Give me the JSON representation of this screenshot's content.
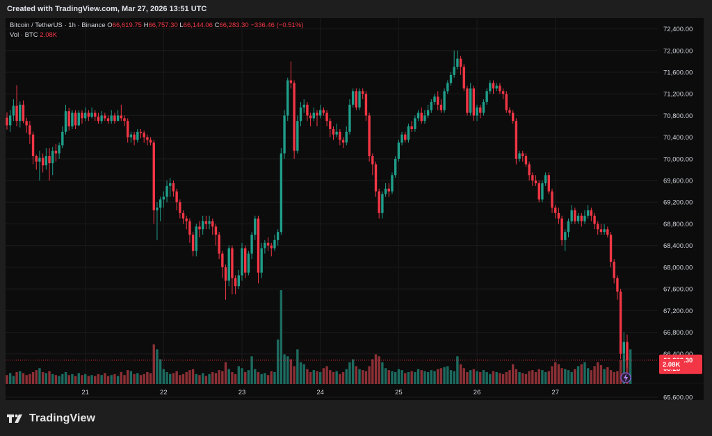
{
  "header": {
    "created": "Created with TradingView.com, Mar 27, 2026 13:51 UTC"
  },
  "legend": {
    "symbol": "Bitcoin / TetherUS · 1h · Binance",
    "o_label": "O",
    "o_value": "66,619.75",
    "h_label": "H",
    "h_value": "66,757.30",
    "l_label": "L",
    "l_value": "66,144.06",
    "c_label": "C",
    "c_value": "66,283.30",
    "change": "−336.46 (−0.51%)",
    "vol_label": "Vol · BTC",
    "vol_value": "2.08K"
  },
  "badges": {
    "price": "66,283.30",
    "countdown": "08:28",
    "volume": "2.08K"
  },
  "branding": {
    "name": "TradingView"
  },
  "colors": {
    "up": "#1f9e8a",
    "down": "#f23645",
    "vol_up": "#1c6b60",
    "vol_down": "#8c3036",
    "grid": "#1b1b1b",
    "background": "#0c0c0c"
  },
  "chart_data": {
    "type": "candlestick",
    "y_ticks": [
      "72,400.00",
      "72,000.00",
      "71,600.00",
      "71,200.00",
      "70,800.00",
      "70,400.00",
      "70,000.00",
      "69,600.00",
      "69,200.00",
      "68,800.00",
      "68,400.00",
      "68,000.00",
      "67,600.00",
      "67,200.00",
      "66,800.00",
      "66,400.00",
      "65,600.00"
    ],
    "x_ticks": [
      "21",
      "22",
      "23",
      "24",
      "25",
      "26",
      "27"
    ],
    "ylim": [
      65550,
      72600
    ],
    "last_price": 66283.3,
    "candles": [
      [
        70760,
        70620,
        70860,
        70540
      ],
      [
        70620,
        70800,
        70900,
        70500
      ],
      [
        70800,
        70980,
        71100,
        70700
      ],
      [
        70980,
        70700,
        71360,
        70600
      ],
      [
        70700,
        71000,
        71060,
        70580
      ],
      [
        71000,
        70700,
        71080,
        70660
      ],
      [
        70700,
        70620,
        70760,
        70480
      ],
      [
        70620,
        70450,
        70700,
        70280
      ],
      [
        70450,
        70050,
        70500,
        69900
      ],
      [
        70050,
        69950,
        70080,
        69800
      ],
      [
        69950,
        70020,
        70150,
        69600
      ],
      [
        70020,
        69880,
        70100,
        69750
      ],
      [
        69880,
        70050,
        70200,
        69800
      ],
      [
        70050,
        69920,
        70200,
        69600
      ],
      [
        69920,
        70150,
        70220,
        69700
      ],
      [
        70150,
        70100,
        70280,
        69950
      ],
      [
        70100,
        70250,
        70300,
        70000
      ],
      [
        70250,
        70500,
        70600,
        70200
      ],
      [
        70500,
        70880,
        71000,
        70450
      ],
      [
        70880,
        70600,
        70940,
        70520
      ],
      [
        70600,
        70850,
        70900,
        70550
      ],
      [
        70850,
        70620,
        70900,
        70550
      ],
      [
        70620,
        70850,
        70900,
        70600
      ],
      [
        70850,
        70750,
        70900,
        70650
      ],
      [
        70750,
        70850,
        70950,
        70700
      ],
      [
        70850,
        70780,
        70900,
        70700
      ],
      [
        70780,
        70850,
        70950,
        70750
      ],
      [
        70850,
        70780,
        70900,
        70700
      ],
      [
        70780,
        70700,
        70850,
        70650
      ],
      [
        70700,
        70800,
        70880,
        70650
      ],
      [
        70800,
        70750,
        70850,
        70700
      ],
      [
        70750,
        70700,
        70800,
        70650
      ],
      [
        70700,
        70800,
        70900,
        70650
      ],
      [
        70800,
        70700,
        70850,
        70650
      ],
      [
        70700,
        70800,
        70900,
        70700
      ],
      [
        70800,
        70750,
        71000,
        70700
      ],
      [
        70750,
        70700,
        70800,
        70600
      ],
      [
        70700,
        70400,
        70750,
        70300
      ],
      [
        70400,
        70450,
        70500,
        70300
      ],
      [
        70450,
        70350,
        70500,
        70250
      ],
      [
        70350,
        70500,
        70550,
        70300
      ],
      [
        70500,
        70480,
        70550,
        70380
      ],
      [
        70480,
        70400,
        70520,
        70300
      ],
      [
        70400,
        70350,
        70450,
        70250
      ],
      [
        70350,
        70300,
        70400,
        70250
      ],
      [
        70300,
        69050,
        70350,
        68800
      ],
      [
        69050,
        69100,
        69200,
        68500
      ],
      [
        69100,
        69250,
        69300,
        68850
      ],
      [
        69250,
        69300,
        69400,
        69100
      ],
      [
        69300,
        69500,
        69600,
        69200
      ],
      [
        69500,
        69550,
        69650,
        69300
      ],
      [
        69550,
        69400,
        69600,
        69300
      ],
      [
        69400,
        69200,
        69450,
        69050
      ],
      [
        69200,
        69000,
        69250,
        68900
      ],
      [
        69000,
        68900,
        69050,
        68800
      ],
      [
        68900,
        68850,
        68950,
        68700
      ],
      [
        68850,
        68600,
        68900,
        68450
      ],
      [
        68600,
        68300,
        68650,
        68200
      ],
      [
        68300,
        68750,
        68800,
        68200
      ],
      [
        68750,
        68700,
        68850,
        68550
      ],
      [
        68700,
        68850,
        68950,
        68600
      ],
      [
        68850,
        68800,
        68950,
        68700
      ],
      [
        68800,
        68850,
        68950,
        68700
      ],
      [
        68850,
        68750,
        68900,
        68600
      ],
      [
        68750,
        68600,
        68800,
        68400
      ],
      [
        68600,
        68250,
        68650,
        68150
      ],
      [
        68250,
        68000,
        68300,
        67800
      ],
      [
        68000,
        67750,
        68050,
        67400
      ],
      [
        67750,
        68350,
        68400,
        67650
      ],
      [
        68350,
        67800,
        68400,
        67500
      ],
      [
        67800,
        67650,
        67850,
        67500
      ],
      [
        67650,
        67850,
        67950,
        67600
      ],
      [
        67850,
        68350,
        68450,
        67750
      ],
      [
        68350,
        67900,
        68400,
        67800
      ],
      [
        67900,
        68250,
        68300,
        67850
      ],
      [
        68250,
        68600,
        68650,
        68150
      ],
      [
        68600,
        68900,
        68950,
        68500
      ],
      [
        68900,
        67900,
        68950,
        67700
      ],
      [
        67900,
        68350,
        68450,
        67800
      ],
      [
        68350,
        68450,
        68500,
        68250
      ],
      [
        68450,
        68400,
        68550,
        68300
      ],
      [
        68400,
        68350,
        68450,
        68200
      ],
      [
        68350,
        68500,
        68600,
        68300
      ],
      [
        68500,
        68650,
        68700,
        68400
      ],
      [
        68650,
        70100,
        70200,
        68600
      ],
      [
        70100,
        70800,
        70900,
        70000
      ],
      [
        70800,
        71450,
        71500,
        70700
      ],
      [
        71450,
        71400,
        71800,
        71300
      ],
      [
        71400,
        70150,
        71450,
        70000
      ],
      [
        70150,
        70700,
        70800,
        70100
      ],
      [
        70700,
        70950,
        71050,
        70600
      ],
      [
        70950,
        71000,
        71100,
        70850
      ],
      [
        71000,
        70800,
        71050,
        70700
      ],
      [
        70800,
        70750,
        70850,
        70600
      ],
      [
        70750,
        70850,
        70950,
        70700
      ],
      [
        70850,
        70800,
        70900,
        70600
      ],
      [
        70800,
        70900,
        71000,
        70750
      ],
      [
        70900,
        70850,
        70950,
        70800
      ],
      [
        70850,
        70700,
        70900,
        70600
      ],
      [
        70700,
        70550,
        70750,
        70400
      ],
      [
        70550,
        70450,
        70600,
        70350
      ],
      [
        70450,
        70500,
        70650,
        70400
      ],
      [
        70500,
        70350,
        70550,
        70250
      ],
      [
        70350,
        70300,
        70400,
        70200
      ],
      [
        70300,
        70500,
        70600,
        70250
      ],
      [
        70500,
        71000,
        71100,
        70450
      ],
      [
        71000,
        71250,
        71300,
        70950
      ],
      [
        71250,
        70950,
        71300,
        70900
      ],
      [
        70950,
        71250,
        71300,
        70900
      ],
      [
        71250,
        71200,
        71300,
        71100
      ],
      [
        71200,
        70800,
        71250,
        70700
      ],
      [
        70800,
        70050,
        70850,
        69950
      ],
      [
        70050,
        69900,
        70100,
        69700
      ],
      [
        69900,
        69400,
        69950,
        69300
      ],
      [
        69400,
        69000,
        69450,
        68900
      ],
      [
        69000,
        69350,
        69400,
        68900
      ],
      [
        69350,
        69450,
        69550,
        69300
      ],
      [
        69450,
        69400,
        69550,
        69300
      ],
      [
        69400,
        69700,
        69750,
        69350
      ],
      [
        69700,
        70000,
        70050,
        69650
      ],
      [
        70000,
        70300,
        70350,
        69950
      ],
      [
        70300,
        70450,
        70500,
        70250
      ],
      [
        70450,
        70350,
        70500,
        70300
      ],
      [
        70350,
        70600,
        70650,
        70300
      ],
      [
        70600,
        70550,
        70700,
        70500
      ],
      [
        70550,
        70750,
        70800,
        70500
      ],
      [
        70750,
        70850,
        70900,
        70700
      ],
      [
        70850,
        70700,
        70950,
        70650
      ],
      [
        70700,
        70800,
        70900,
        70650
      ],
      [
        70800,
        70900,
        71000,
        70750
      ],
      [
        70900,
        71050,
        71100,
        70850
      ],
      [
        71050,
        71150,
        71200,
        71000
      ],
      [
        71150,
        71000,
        71250,
        70900
      ],
      [
        71000,
        70900,
        71100,
        70850
      ],
      [
        70900,
        71250,
        71300,
        70850
      ],
      [
        71250,
        71400,
        71450,
        71200
      ],
      [
        71400,
        71550,
        71600,
        71350
      ],
      [
        71550,
        71700,
        72000,
        71500
      ],
      [
        71700,
        71850,
        72000,
        71650
      ],
      [
        71850,
        71700,
        71900,
        71550
      ],
      [
        71700,
        71300,
        71750,
        71250
      ],
      [
        71300,
        70850,
        71350,
        70800
      ],
      [
        70850,
        71300,
        71400,
        70800
      ],
      [
        71300,
        70800,
        71350,
        70700
      ],
      [
        70800,
        70950,
        71000,
        70700
      ],
      [
        70950,
        70850,
        71000,
        70750
      ],
      [
        70850,
        71050,
        71100,
        70800
      ],
      [
        71050,
        71250,
        71300,
        71000
      ],
      [
        71250,
        71400,
        71450,
        71200
      ],
      [
        71400,
        71300,
        71450,
        71200
      ],
      [
        71300,
        71350,
        71400,
        71250
      ],
      [
        71350,
        71250,
        71400,
        71200
      ],
      [
        71250,
        71200,
        71300,
        71100
      ],
      [
        71200,
        70900,
        71250,
        70850
      ],
      [
        70900,
        70850,
        70950,
        70800
      ],
      [
        70850,
        70700,
        70900,
        70650
      ],
      [
        70700,
        70000,
        70750,
        69900
      ],
      [
        70000,
        70100,
        70150,
        69950
      ],
      [
        70100,
        70050,
        70150,
        69950
      ],
      [
        70050,
        69900,
        70100,
        69850
      ],
      [
        69900,
        69700,
        69950,
        69600
      ],
      [
        69700,
        69600,
        69750,
        69500
      ],
      [
        69600,
        69550,
        69700,
        69500
      ],
      [
        69550,
        69250,
        69600,
        69200
      ],
      [
        69250,
        69550,
        69600,
        69200
      ],
      [
        69550,
        69700,
        69750,
        69500
      ],
      [
        69700,
        69400,
        69750,
        69350
      ],
      [
        69400,
        69100,
        69450,
        69000
      ],
      [
        69100,
        69000,
        69150,
        68900
      ],
      [
        69000,
        68900,
        69100,
        68800
      ],
      [
        68900,
        68500,
        68950,
        68400
      ],
      [
        68500,
        68650,
        68700,
        68300
      ],
      [
        68650,
        68850,
        68900,
        68550
      ],
      [
        68850,
        69050,
        69150,
        68800
      ],
      [
        69050,
        68850,
        69100,
        68800
      ],
      [
        68850,
        68950,
        69000,
        68800
      ],
      [
        68950,
        68850,
        69000,
        68750
      ],
      [
        68850,
        68950,
        69050,
        68800
      ],
      [
        68950,
        69050,
        69150,
        68900
      ],
      [
        69050,
        68950,
        69100,
        68850
      ],
      [
        68950,
        68800,
        69000,
        68700
      ],
      [
        68800,
        68700,
        68850,
        68600
      ],
      [
        68700,
        68650,
        68800,
        68600
      ],
      [
        68650,
        68700,
        68800,
        68600
      ],
      [
        68700,
        68600,
        68750,
        68550
      ],
      [
        68600,
        68100,
        68650,
        68000
      ],
      [
        68100,
        67800,
        68150,
        67700
      ],
      [
        67800,
        67550,
        67850,
        67400
      ],
      [
        67550,
        66400,
        67600,
        66300
      ],
      [
        66400,
        66619.75,
        66800,
        66250
      ],
      [
        66619.75,
        66283.3,
        66757.3,
        66144.06
      ]
    ],
    "volumes": [
      9,
      11,
      8,
      12,
      13,
      11,
      9,
      10,
      12,
      14,
      16,
      12,
      11,
      13,
      10,
      9,
      8,
      10,
      12,
      9,
      10,
      8,
      11,
      9,
      10,
      8,
      9,
      8,
      10,
      9,
      11,
      8,
      9,
      10,
      8,
      12,
      9,
      14,
      13,
      10,
      11,
      9,
      10,
      12,
      11,
      40,
      35,
      25,
      15,
      12,
      10,
      11,
      13,
      9,
      10,
      12,
      14,
      15,
      10,
      9,
      11,
      8,
      10,
      12,
      11,
      14,
      13,
      22,
      15,
      12,
      10,
      18,
      16,
      12,
      14,
      28,
      15,
      12,
      10,
      11,
      9,
      13,
      12,
      45,
      95,
      30,
      28,
      25,
      18,
      35,
      22,
      20,
      15,
      12,
      14,
      13,
      12,
      16,
      18,
      14,
      12,
      13,
      10,
      12,
      15,
      22,
      25,
      18,
      15,
      14,
      13,
      18,
      25,
      30,
      28,
      22,
      16,
      14,
      13,
      12,
      15,
      14,
      11,
      12,
      13,
      12,
      15,
      14,
      13,
      12,
      14,
      13,
      15,
      16,
      17,
      18,
      14,
      13,
      28,
      20,
      16,
      12,
      14,
      15,
      13,
      12,
      14,
      12,
      10,
      13,
      12,
      11,
      10,
      12,
      14,
      20,
      15,
      12,
      11,
      10,
      13,
      14,
      12,
      15,
      14,
      12,
      13,
      18,
      22,
      20,
      16,
      15,
      14,
      12,
      15,
      18,
      20,
      22,
      16,
      14,
      18,
      22,
      19,
      15,
      17,
      14,
      12,
      13,
      24,
      30,
      28,
      35
    ]
  }
}
